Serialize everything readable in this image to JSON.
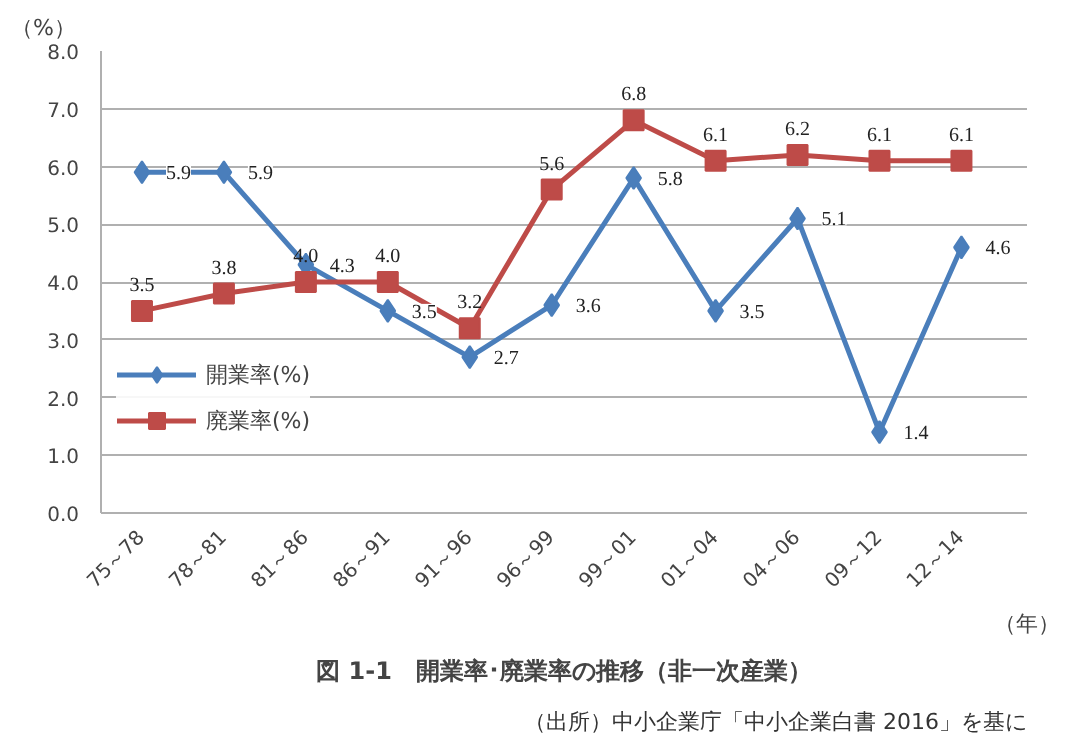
{
  "chart_data": {
    "type": "line",
    "title": "図 1-1　開業率･廃業率の推移（非一次産業）",
    "ylabel": "（%）",
    "xlabel": "（年）",
    "categories": [
      "75～78",
      "78～81",
      "81～86",
      "86～91",
      "91～96",
      "96～99",
      "99～01",
      "01～04",
      "04～06",
      "09～12",
      "12～14"
    ],
    "series": [
      {
        "name": "開業率(%)",
        "color": "#4a7ebb",
        "marker": "diamond",
        "values": [
          5.9,
          5.9,
          4.3,
          3.5,
          2.7,
          3.6,
          5.8,
          3.5,
          5.1,
          1.4,
          4.6
        ],
        "value_labels": [
          "5.9",
          "5.9",
          "4.3",
          "3.5",
          "2.7",
          "3.6",
          "5.8",
          "3.5",
          "5.1",
          "1.4",
          "4.6"
        ]
      },
      {
        "name": "廃業率(%)",
        "color": "#be4b48",
        "marker": "square",
        "values": [
          3.5,
          3.8,
          4.0,
          4.0,
          3.2,
          5.6,
          6.8,
          6.1,
          6.2,
          6.1,
          6.1
        ],
        "value_labels": [
          "3.5",
          "3.8",
          "4.0",
          "4.0",
          "3.2",
          "5.6",
          "6.8",
          "6.1",
          "6.2",
          "6.1",
          "6.1"
        ]
      }
    ],
    "ylim": [
      0,
      8
    ],
    "yticks": [
      {
        "value": 0,
        "label": "0.0"
      },
      {
        "value": 1,
        "label": "1.0"
      },
      {
        "value": 2,
        "label": "2.0"
      },
      {
        "value": 3,
        "label": "3.0"
      },
      {
        "value": 4,
        "label": "4.0"
      },
      {
        "value": 5,
        "label": "5.0"
      },
      {
        "value": 6,
        "label": "6.0"
      },
      {
        "value": 7,
        "label": "7.0"
      },
      {
        "value": 8,
        "label": "8.0"
      }
    ],
    "grid": "y",
    "legend": "left",
    "line_style": "solid",
    "annotations": [
      "（出所）中小企業庁「中小企業白書 2016」を基に"
    ]
  }
}
